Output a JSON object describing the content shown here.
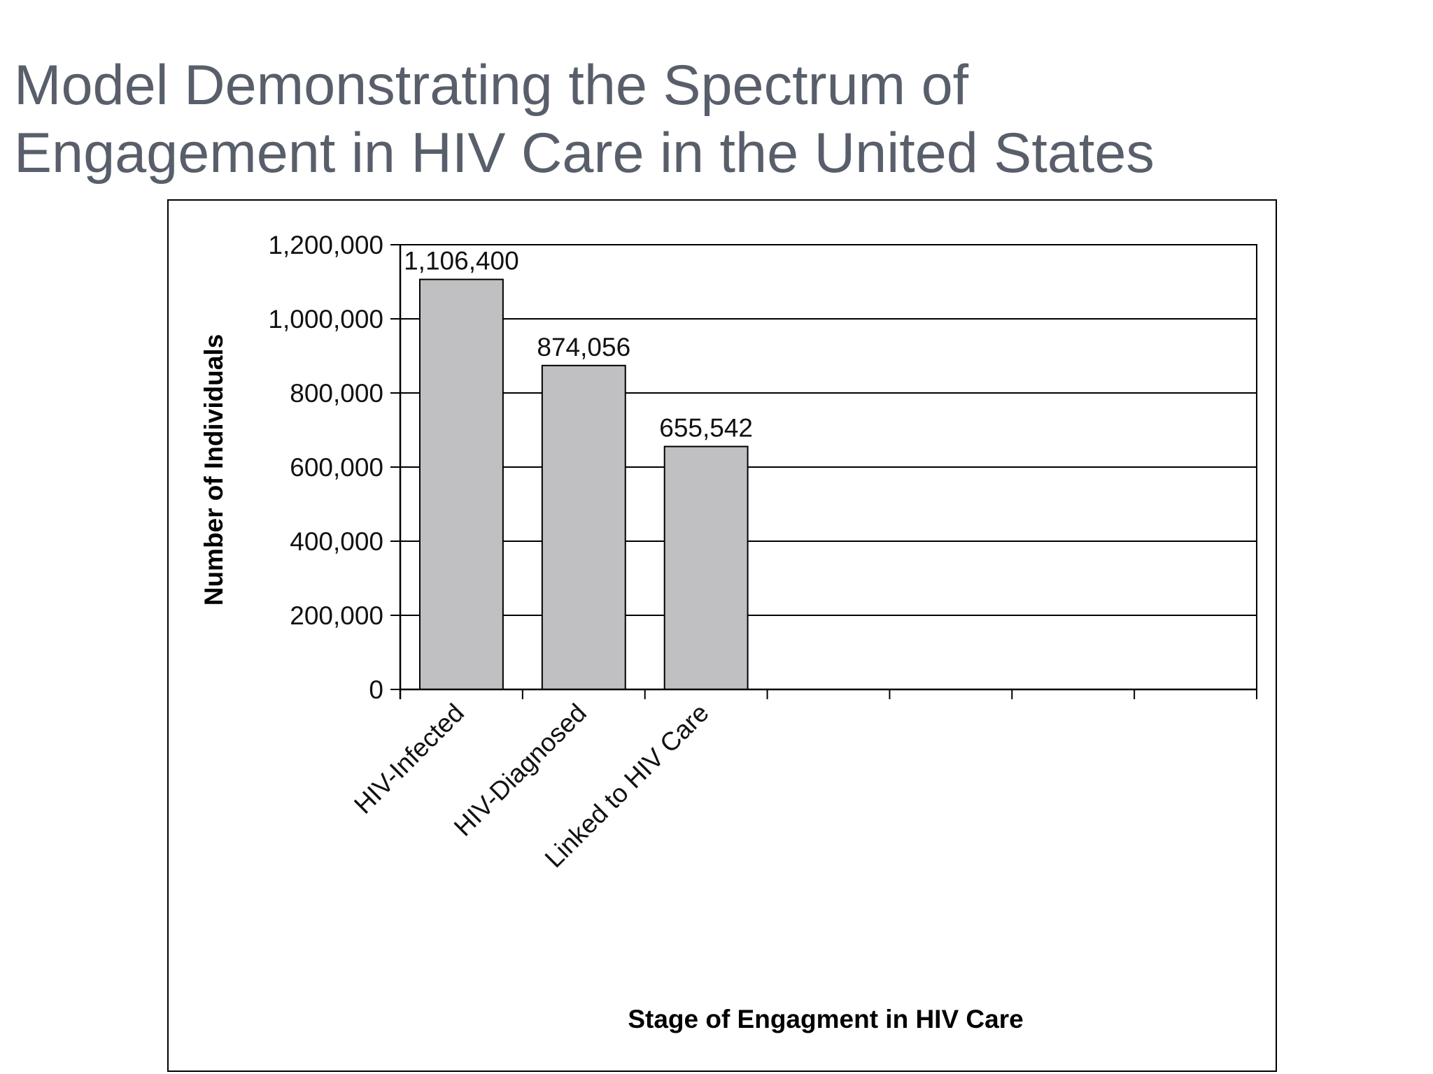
{
  "slide": {
    "title_line1": "Model Demonstrating the Spectrum of",
    "title_line2": "Engagement in HIV Care in the United States"
  },
  "chart_data": {
    "type": "bar",
    "categories": [
      "HIV-Infected",
      "HIV-Diagnosed",
      "Linked to HIV Care"
    ],
    "values": [
      1106400,
      874056,
      655542
    ],
    "data_labels": [
      "1,106,400",
      "874,056",
      "655,542"
    ],
    "xlabel": "Stage of Engagment in HIV Care",
    "ylabel": "Number of Individuals",
    "ylim": [
      0,
      1200000
    ],
    "yticks": [
      0,
      200000,
      400000,
      600000,
      800000,
      1000000,
      1200000
    ],
    "ytick_labels": [
      "0",
      "200,000",
      "400,000",
      "600,000",
      "800,000",
      "1,000,000",
      "1,200,000"
    ],
    "category_slots": 7,
    "grid": true,
    "legend": "none",
    "colors": {
      "bar_fill": "#c0bfc2",
      "bar_stroke": "#000000",
      "gridline": "#000000",
      "title": "#585f6b"
    }
  }
}
